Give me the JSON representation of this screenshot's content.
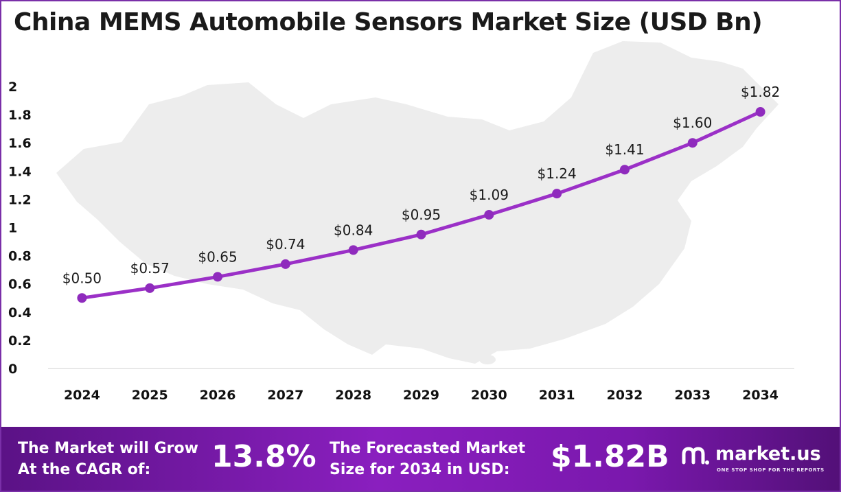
{
  "title": "China MEMS Automobile Sensors Market Size (USD Bn)",
  "chart_data": {
    "type": "line",
    "title": "China MEMS Automobile Sensors Market Size (USD Bn)",
    "xlabel": "",
    "ylabel": "",
    "categories": [
      "2024",
      "2025",
      "2026",
      "2027",
      "2028",
      "2029",
      "2030",
      "2031",
      "2032",
      "2033",
      "2034"
    ],
    "values": [
      0.5,
      0.57,
      0.65,
      0.74,
      0.84,
      0.95,
      1.09,
      1.24,
      1.41,
      1.6,
      1.82
    ],
    "data_labels": [
      "$0.50",
      "$0.57",
      "$0.65",
      "$0.74",
      "$0.84",
      "$0.95",
      "$1.09",
      "$1.24",
      "$1.41",
      "$1.60",
      "$1.82"
    ],
    "ylim": [
      0,
      2
    ],
    "yticks": [
      "0",
      "0.2",
      "0.4",
      "0.6",
      "0.8",
      "1",
      "1.2",
      "1.4",
      "1.6",
      "1.8",
      "2"
    ],
    "grid": false,
    "legend": "none",
    "line_color": "#9b30c7",
    "marker_color": "#8f2bbd",
    "background_image": "china-map-silhouette"
  },
  "footer": {
    "cagr_text_line1": "The Market will Grow",
    "cagr_text_line2": "At the CAGR of:",
    "cagr_value": "13.8%",
    "forecast_text_line1": "The Forecasted Market",
    "forecast_text_line2": "Size for 2034 in USD:",
    "forecast_value": "$1.82B",
    "brand_name": "market.us",
    "brand_tagline": "ONE STOP SHOP FOR THE REPORTS",
    "brand_icon": "market-us-logo-icon",
    "background_color": "#7a18ad"
  }
}
